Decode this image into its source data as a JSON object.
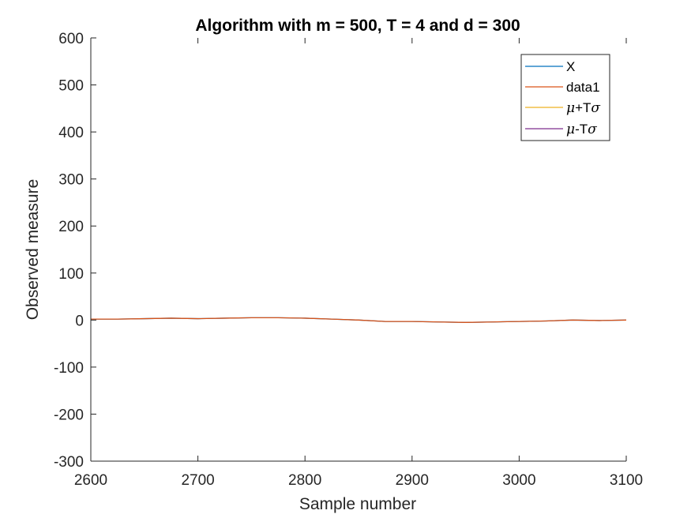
{
  "chart_data": {
    "type": "line",
    "title": "Algorithm with m = 500, T = 4 and d = 300",
    "xlabel": "Sample number",
    "ylabel": "Observed measure",
    "xlim": [
      2600,
      3100
    ],
    "ylim": [
      -300,
      600
    ],
    "x_ticks": [
      "2600",
      "2700",
      "2800",
      "2900",
      "3000",
      "3100"
    ],
    "y_ticks": [
      "600",
      "500",
      "400",
      "300",
      "200",
      "100",
      "0",
      "-100",
      "-200",
      "-300"
    ],
    "grid": false,
    "legend_position": "top-right",
    "series": [
      {
        "name": "X",
        "color": "#0072BD",
        "x": [
          2600,
          2625,
          2650,
          2675,
          2700,
          2725,
          2750,
          2775,
          2800,
          2825,
          2850,
          2875,
          2900,
          2925,
          2950,
          2975,
          3000,
          3025,
          3050,
          3075,
          3100
        ],
        "y": [
          2,
          2,
          3,
          4,
          3,
          4,
          5,
          5,
          4,
          2,
          0,
          -3,
          -3,
          -4,
          -5,
          -4,
          -3,
          -2,
          0,
          -1,
          0
        ]
      },
      {
        "name": "data1",
        "color": "#D95319",
        "x": [
          2600,
          2625,
          2650,
          2675,
          2700,
          2725,
          2750,
          2775,
          2800,
          2825,
          2850,
          2875,
          2900,
          2925,
          2950,
          2975,
          3000,
          3025,
          3050,
          3075,
          3100
        ],
        "y": [
          2,
          2,
          3,
          4,
          3,
          4,
          5,
          5,
          4,
          2,
          0,
          -3,
          -3,
          -4,
          -5,
          -4,
          -3,
          -2,
          0,
          -1,
          0
        ]
      },
      {
        "name": "μ+Tσ",
        "name_parts": [
          "μ",
          "+T",
          "σ"
        ],
        "color": "#EDB120",
        "x": [],
        "y": []
      },
      {
        "name": "μ-Tσ",
        "name_parts": [
          "μ",
          "-T",
          "σ"
        ],
        "color": "#7E2F8E",
        "x": [],
        "y": []
      }
    ]
  }
}
